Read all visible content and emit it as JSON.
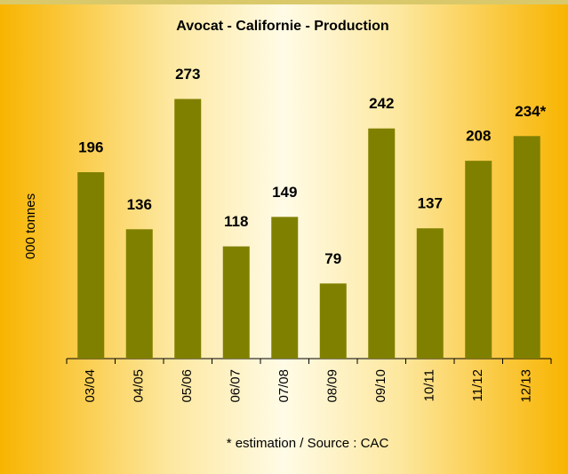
{
  "chart_data": {
    "type": "bar",
    "title": "Avocat - Californie - Production",
    "y_label": "000 tonnes",
    "annotation": "* estimation / Source : CAC",
    "categories": [
      "03/04",
      "04/05",
      "05/06",
      "06/07",
      "07/08",
      "08/09",
      "09/10",
      "10/11",
      "11/12",
      "12/13"
    ],
    "values": [
      196,
      136,
      273,
      118,
      149,
      79,
      242,
      137,
      208,
      234
    ],
    "value_labels": [
      "196",
      "136",
      "273",
      "118",
      "149",
      "79",
      "242",
      "137",
      "208",
      "234*"
    ],
    "color": "#808000",
    "ylim": [
      0,
      280
    ]
  }
}
